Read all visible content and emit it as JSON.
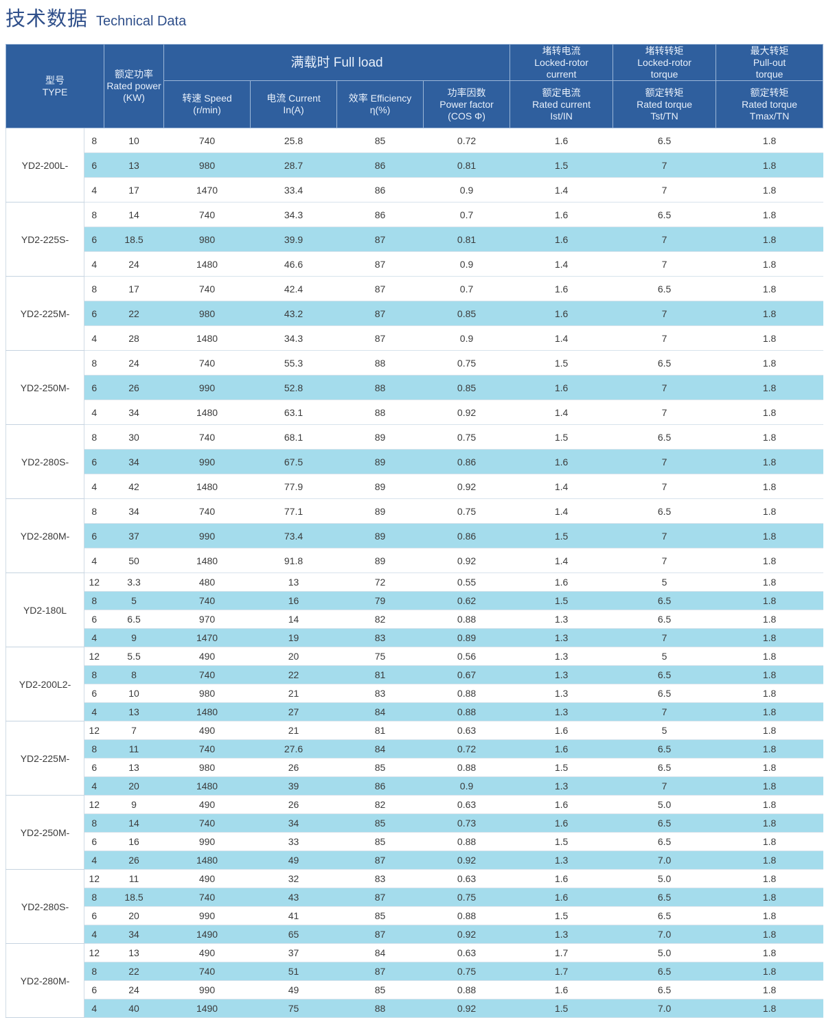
{
  "page": {
    "title_cn": "技术数据",
    "title_en": "Technical Data"
  },
  "header": {
    "type": [
      "型号",
      "TYPE"
    ],
    "rated_power": [
      "额定功率",
      "Rated power",
      "(KW)"
    ],
    "full_load": "满载时 Full load",
    "locked_current_top": [
      "堵转电流",
      "Locked-rotor",
      "current"
    ],
    "locked_torque_top": [
      "堵转转矩",
      "Locked-rotor",
      "torque"
    ],
    "pullout_top": [
      "最大转矩",
      "Pull-out",
      "torque"
    ],
    "speed": [
      "转速 Speed",
      "(r/min)"
    ],
    "current": [
      "电流 Current",
      "In(A)"
    ],
    "efficiency": [
      "效率 Efficiency",
      "η(%)"
    ],
    "power_factor": [
      "功率因数",
      "Power factor",
      "(COS Φ)"
    ],
    "rated_current": [
      "额定电流",
      "Rated current",
      "Ist/IN"
    ],
    "rated_torque": [
      "额定转矩",
      "Rated torque",
      "Tst/TN"
    ],
    "max_torque": [
      "额定转矩",
      "Rated torque",
      "Tmax/TN"
    ]
  },
  "groups": [
    {
      "type": "YD2-200L-",
      "rows": [
        [
          "8",
          "10",
          "740",
          "25.8",
          "85",
          "0.72",
          "1.6",
          "6.5",
          "1.8"
        ],
        [
          "6",
          "13",
          "980",
          "28.7",
          "86",
          "0.81",
          "1.5",
          "7",
          "1.8"
        ],
        [
          "4",
          "17",
          "1470",
          "33.4",
          "86",
          "0.9",
          "1.4",
          "7",
          "1.8"
        ]
      ]
    },
    {
      "type": "YD2-225S-",
      "rows": [
        [
          "8",
          "14",
          "740",
          "34.3",
          "86",
          "0.7",
          "1.6",
          "6.5",
          "1.8"
        ],
        [
          "6",
          "18.5",
          "980",
          "39.9",
          "87",
          "0.81",
          "1.6",
          "7",
          "1.8"
        ],
        [
          "4",
          "24",
          "1480",
          "46.6",
          "87",
          "0.9",
          "1.4",
          "7",
          "1.8"
        ]
      ]
    },
    {
      "type": "YD2-225M-",
      "rows": [
        [
          "8",
          "17",
          "740",
          "42.4",
          "87",
          "0.7",
          "1.6",
          "6.5",
          "1.8"
        ],
        [
          "6",
          "22",
          "980",
          "43.2",
          "87",
          "0.85",
          "1.6",
          "7",
          "1.8"
        ],
        [
          "4",
          "28",
          "1480",
          "34.3",
          "87",
          "0.9",
          "1.4",
          "7",
          "1.8"
        ]
      ]
    },
    {
      "type": "YD2-250M-",
      "rows": [
        [
          "8",
          "24",
          "740",
          "55.3",
          "88",
          "0.75",
          "1.5",
          "6.5",
          "1.8"
        ],
        [
          "6",
          "26",
          "990",
          "52.8",
          "88",
          "0.85",
          "1.6",
          "7",
          "1.8"
        ],
        [
          "4",
          "34",
          "1480",
          "63.1",
          "88",
          "0.92",
          "1.4",
          "7",
          "1.8"
        ]
      ]
    },
    {
      "type": "YD2-280S-",
      "rows": [
        [
          "8",
          "30",
          "740",
          "68.1",
          "89",
          "0.75",
          "1.5",
          "6.5",
          "1.8"
        ],
        [
          "6",
          "34",
          "990",
          "67.5",
          "89",
          "0.86",
          "1.6",
          "7",
          "1.8"
        ],
        [
          "4",
          "42",
          "1480",
          "77.9",
          "89",
          "0.92",
          "1.4",
          "7",
          "1.8"
        ]
      ]
    },
    {
      "type": "YD2-280M-",
      "rows": [
        [
          "8",
          "34",
          "740",
          "77.1",
          "89",
          "0.75",
          "1.4",
          "6.5",
          "1.8"
        ],
        [
          "6",
          "37",
          "990",
          "73.4",
          "89",
          "0.86",
          "1.5",
          "7",
          "1.8"
        ],
        [
          "4",
          "50",
          "1480",
          "91.8",
          "89",
          "0.92",
          "1.4",
          "7",
          "1.8"
        ]
      ]
    },
    {
      "type": "YD2-180L",
      "rows": [
        [
          "12",
          "3.3",
          "480",
          "13",
          "72",
          "0.55",
          "1.6",
          "5",
          "1.8"
        ],
        [
          "8",
          "5",
          "740",
          "16",
          "79",
          "0.62",
          "1.5",
          "6.5",
          "1.8"
        ],
        [
          "6",
          "6.5",
          "970",
          "14",
          "82",
          "0.88",
          "1.3",
          "6.5",
          "1.8"
        ],
        [
          "4",
          "9",
          "1470",
          "19",
          "83",
          "0.89",
          "1.3",
          "7",
          "1.8"
        ]
      ]
    },
    {
      "type": "YD2-200L2-",
      "rows": [
        [
          "12",
          "5.5",
          "490",
          "20",
          "75",
          "0.56",
          "1.3",
          "5",
          "1.8"
        ],
        [
          "8",
          "8",
          "740",
          "22",
          "81",
          "0.67",
          "1.3",
          "6.5",
          "1.8"
        ],
        [
          "6",
          "10",
          "980",
          "21",
          "83",
          "0.88",
          "1.3",
          "6.5",
          "1.8"
        ],
        [
          "4",
          "13",
          "1480",
          "27",
          "84",
          "0.88",
          "1.3",
          "7",
          "1.8"
        ]
      ]
    },
    {
      "type": "YD2-225M-",
      "rows": [
        [
          "12",
          "7",
          "490",
          "21",
          "81",
          "0.63",
          "1.6",
          "5",
          "1.8"
        ],
        [
          "8",
          "11",
          "740",
          "27.6",
          "84",
          "0.72",
          "1.6",
          "6.5",
          "1.8"
        ],
        [
          "6",
          "13",
          "980",
          "26",
          "85",
          "0.88",
          "1.5",
          "6.5",
          "1.8"
        ],
        [
          "4",
          "20",
          "1480",
          "39",
          "86",
          "0.9",
          "1.3",
          "7",
          "1.8"
        ]
      ]
    },
    {
      "type": "YD2-250M-",
      "rows": [
        [
          "12",
          "9",
          "490",
          "26",
          "82",
          "0.63",
          "1.6",
          "5.0",
          "1.8"
        ],
        [
          "8",
          "14",
          "740",
          "34",
          "85",
          "0.73",
          "1.6",
          "6.5",
          "1.8"
        ],
        [
          "6",
          "16",
          "990",
          "33",
          "85",
          "0.88",
          "1.5",
          "6.5",
          "1.8"
        ],
        [
          "4",
          "26",
          "1480",
          "49",
          "87",
          "0.92",
          "1.3",
          "7.0",
          "1.8"
        ]
      ]
    },
    {
      "type": "YD2-280S-",
      "rows": [
        [
          "12",
          "11",
          "490",
          "32",
          "83",
          "0.63",
          "1.6",
          "5.0",
          "1.8"
        ],
        [
          "8",
          "18.5",
          "740",
          "43",
          "87",
          "0.75",
          "1.6",
          "6.5",
          "1.8"
        ],
        [
          "6",
          "20",
          "990",
          "41",
          "85",
          "0.88",
          "1.5",
          "6.5",
          "1.8"
        ],
        [
          "4",
          "34",
          "1490",
          "65",
          "87",
          "0.92",
          "1.3",
          "7.0",
          "1.8"
        ]
      ]
    },
    {
      "type": "YD2-280M-",
      "rows": [
        [
          "12",
          "13",
          "490",
          "37",
          "84",
          "0.63",
          "1.7",
          "5.0",
          "1.8"
        ],
        [
          "8",
          "22",
          "740",
          "51",
          "87",
          "0.75",
          "1.7",
          "6.5",
          "1.8"
        ],
        [
          "6",
          "24",
          "990",
          "49",
          "85",
          "0.88",
          "1.6",
          "6.5",
          "1.8"
        ],
        [
          "4",
          "40",
          "1490",
          "75",
          "88",
          "0.92",
          "1.5",
          "7.0",
          "1.8"
        ]
      ]
    }
  ]
}
